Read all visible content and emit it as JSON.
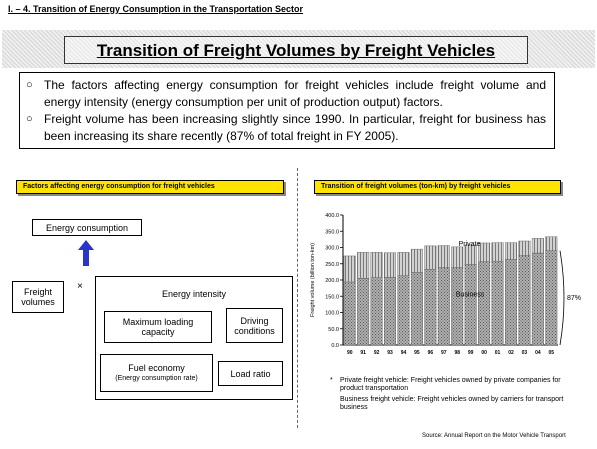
{
  "section_title": "I. – 4. Transition of Energy Consumption in the Transportation Sector",
  "main_title": "Transition of Freight Volumes by Freight Vehicles",
  "bullets": [
    {
      "mark": "○",
      "text": "The factors affecting energy consumption for freight vehicles include freight volume and energy intensity (energy consumption per unit of production output) factors."
    },
    {
      "mark": "○",
      "text": "Freight volume has been increasing slightly since 1990. In particular, freight for business has been increasing its share recently (87% of total freight in FY 2005)."
    }
  ],
  "left_panel": {
    "label": "Factors affecting energy consumption for freight vehicles",
    "energy_consumption": "Energy consumption",
    "freight_volumes": "Freight volumes",
    "times": "×",
    "energy_intensity": "Energy intensity",
    "max_loading": "Maximum loading capacity",
    "driving_conditions": "Driving conditions",
    "fuel_economy": "Fuel economy",
    "fuel_economy_sub": "(Energy consumption rate)",
    "load_ratio": "Load ratio",
    "colors": {
      "label_bg": "#ffe400",
      "arrow": "#2b34c8"
    }
  },
  "right_panel": {
    "label": "Transition of freight volumes (ton-km) by freight vehicles"
  },
  "chart_data": {
    "type": "bar",
    "stacked": true,
    "title": "",
    "ylabel": "Freight volume (billion ton-km)",
    "xlabel": "",
    "categories": [
      "90",
      "91",
      "92",
      "93",
      "94",
      "95",
      "96",
      "97",
      "98",
      "99",
      "00",
      "01",
      "02",
      "03",
      "04",
      "05"
    ],
    "series": [
      {
        "name": "Business",
        "values": [
          194,
          205,
          207,
          208,
          213,
          223,
          233,
          238,
          238,
          248,
          256,
          258,
          263,
          275,
          283,
          290
        ],
        "pattern": "dots",
        "color": "#a0a0a0"
      },
      {
        "name": "Private",
        "values": [
          80,
          80,
          78,
          76,
          72,
          72,
          72,
          68,
          64,
          60,
          58,
          57,
          52,
          45,
          45,
          43
        ],
        "pattern": "stripes",
        "color": "#b8b8b8"
      }
    ],
    "ylim": [
      0,
      400
    ],
    "yticks": [
      "0.0",
      "50.0",
      "100.0",
      "150.0",
      "200.0",
      "250.0",
      "300.0",
      "350.0",
      "400.0"
    ],
    "annotation": "87%"
  },
  "notes": [
    {
      "mark": "*",
      "text": "Private freight vehicle: Freight vehicles owned by private companies for product transportation"
    },
    {
      "mark": "",
      "text": "Business freight vehicle: Freight vehicles owned by carriers for transport business"
    }
  ],
  "source": "Source: Annual Report on the Motor Vehicle Transport"
}
